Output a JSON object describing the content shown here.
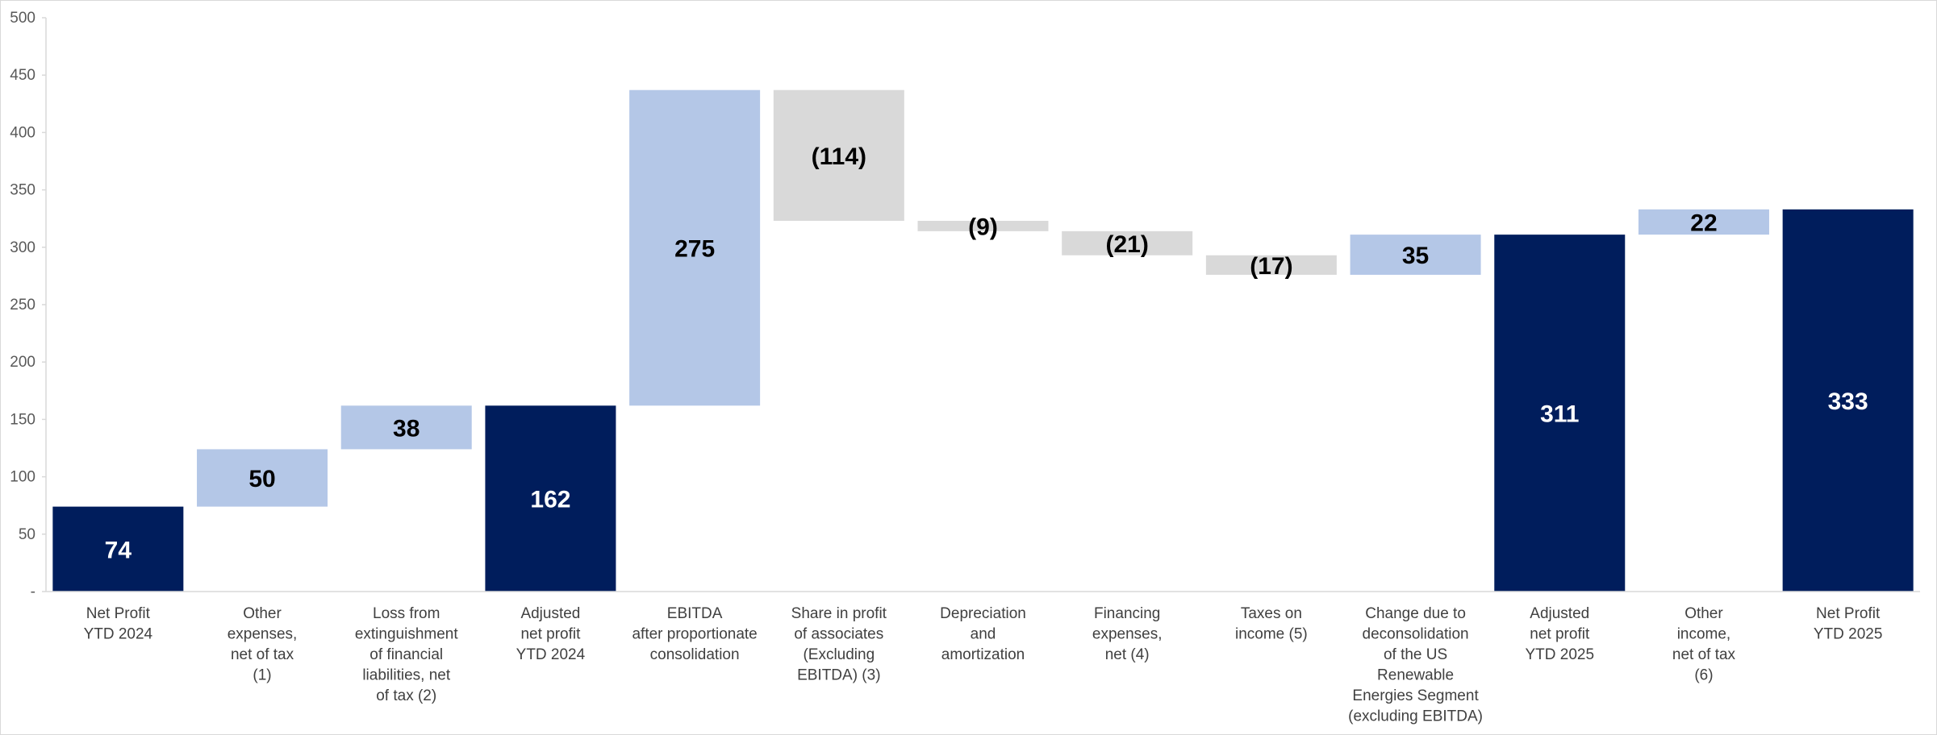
{
  "chart_data": {
    "type": "bar",
    "subtype": "waterfall",
    "title": "",
    "xlabel": "",
    "ylabel": "",
    "ylim": [
      0,
      500
    ],
    "yticks": [
      "-",
      "50",
      "100",
      "150",
      "200",
      "250",
      "300",
      "350",
      "400",
      "450",
      "500"
    ],
    "grid": false,
    "legend": "none",
    "colors": {
      "total": "#001d5c",
      "increase": "#b4c7e7",
      "decrease": "#d9d9d9",
      "axis": "#d9d9d9"
    },
    "bars": [
      {
        "category": [
          "Net Profit",
          "YTD 2024"
        ],
        "kind": "total",
        "start": 0,
        "end": 74,
        "label": "74"
      },
      {
        "category": [
          "Other",
          "expenses,",
          "net of tax",
          "(1)"
        ],
        "kind": "increase",
        "start": 74,
        "end": 124,
        "label": "50"
      },
      {
        "category": [
          "Loss from",
          "extinguishment",
          "of financial",
          "liabilities, net",
          "of tax (2)"
        ],
        "kind": "increase",
        "start": 124,
        "end": 162,
        "label": "38"
      },
      {
        "category": [
          "Adjusted",
          "net profit",
          "YTD 2024"
        ],
        "kind": "total",
        "start": 0,
        "end": 162,
        "label": "162"
      },
      {
        "category": [
          "EBITDA",
          "after proportionate",
          "consolidation"
        ],
        "kind": "increase",
        "start": 162,
        "end": 437,
        "label": "275"
      },
      {
        "category": [
          "Share in profit",
          "of associates",
          "(Excluding",
          "EBITDA) (3)"
        ],
        "kind": "decrease",
        "start": 437,
        "end": 323,
        "label": "(114)"
      },
      {
        "category": [
          "Depreciation",
          "and",
          "amortization"
        ],
        "kind": "decrease",
        "start": 323,
        "end": 314,
        "label": "(9)"
      },
      {
        "category": [
          "Financing",
          "expenses,",
          "net (4)"
        ],
        "kind": "decrease",
        "start": 314,
        "end": 293,
        "label": "(21)"
      },
      {
        "category": [
          "Taxes on",
          "income (5)"
        ],
        "kind": "decrease",
        "start": 293,
        "end": 276,
        "label": "(17)"
      },
      {
        "category": [
          "Change due to",
          "deconsolidation",
          "of the US",
          "Renewable",
          "Energies Segment",
          "(excluding EBITDA)"
        ],
        "kind": "increase",
        "start": 276,
        "end": 311,
        "label": "35"
      },
      {
        "category": [
          "Adjusted",
          "net profit",
          "YTD 2025"
        ],
        "kind": "total",
        "start": 0,
        "end": 311,
        "label": "311"
      },
      {
        "category": [
          "Other",
          "income,",
          "net of tax",
          "(6)"
        ],
        "kind": "increase",
        "start": 311,
        "end": 333,
        "label": "22"
      },
      {
        "category": [
          "Net Profit",
          "YTD 2025"
        ],
        "kind": "total",
        "start": 0,
        "end": 333,
        "label": "333"
      }
    ]
  }
}
